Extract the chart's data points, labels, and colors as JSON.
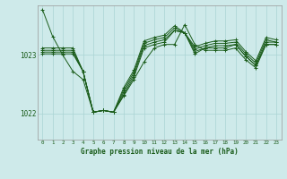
{
  "title": "Graphe pression niveau de la mer (hPa)",
  "background_color": "#ceeaea",
  "grid_color": "#aad4d4",
  "line_color": "#1a5c1a",
  "text_color": "#1a5c1a",
  "xlim": [
    -0.5,
    23.5
  ],
  "ylim": [
    1021.55,
    1023.85
  ],
  "yticks": [
    1022,
    1023
  ],
  "xtick_labels": [
    "0",
    "1",
    "2",
    "3",
    "4",
    "5",
    "6",
    "7",
    "8",
    "9",
    "10",
    "11",
    "12",
    "13",
    "14",
    "15",
    "16",
    "17",
    "18",
    "19",
    "20",
    "21",
    "22",
    "23"
  ],
  "series": [
    [
      1023.78,
      1023.32,
      1023.0,
      1022.72,
      1022.58,
      1022.02,
      1022.05,
      1022.02,
      1022.3,
      1022.58,
      1022.88,
      1023.12,
      1023.18,
      1023.18,
      1023.52,
      1023.18,
      1023.08,
      1023.08,
      1023.08,
      1023.12,
      1022.92,
      1022.78,
      1023.18,
      1023.18
    ],
    [
      1023.02,
      1023.02,
      1023.02,
      1023.02,
      1022.72,
      1022.02,
      1022.05,
      1022.02,
      1022.32,
      1022.62,
      1023.12,
      1023.18,
      1023.22,
      1023.42,
      1023.38,
      1023.02,
      1023.12,
      1023.12,
      1023.12,
      1023.18,
      1022.98,
      1022.82,
      1023.18,
      1023.18
    ],
    [
      1023.05,
      1023.05,
      1023.05,
      1023.05,
      1022.72,
      1022.02,
      1022.05,
      1022.02,
      1022.36,
      1022.66,
      1023.16,
      1023.22,
      1023.26,
      1023.42,
      1023.38,
      1023.06,
      1023.12,
      1023.16,
      1023.16,
      1023.18,
      1022.98,
      1022.82,
      1023.22,
      1023.22
    ],
    [
      1023.08,
      1023.08,
      1023.08,
      1023.08,
      1022.72,
      1022.02,
      1022.05,
      1022.02,
      1022.4,
      1022.7,
      1023.2,
      1023.26,
      1023.3,
      1023.46,
      1023.38,
      1023.1,
      1023.16,
      1023.2,
      1023.2,
      1023.22,
      1023.02,
      1022.86,
      1023.26,
      1023.22
    ],
    [
      1023.12,
      1023.12,
      1023.12,
      1023.12,
      1022.72,
      1022.02,
      1022.05,
      1022.02,
      1022.44,
      1022.74,
      1023.24,
      1023.3,
      1023.34,
      1023.5,
      1023.38,
      1023.14,
      1023.2,
      1023.24,
      1023.24,
      1023.26,
      1023.06,
      1022.9,
      1023.3,
      1023.26
    ]
  ]
}
